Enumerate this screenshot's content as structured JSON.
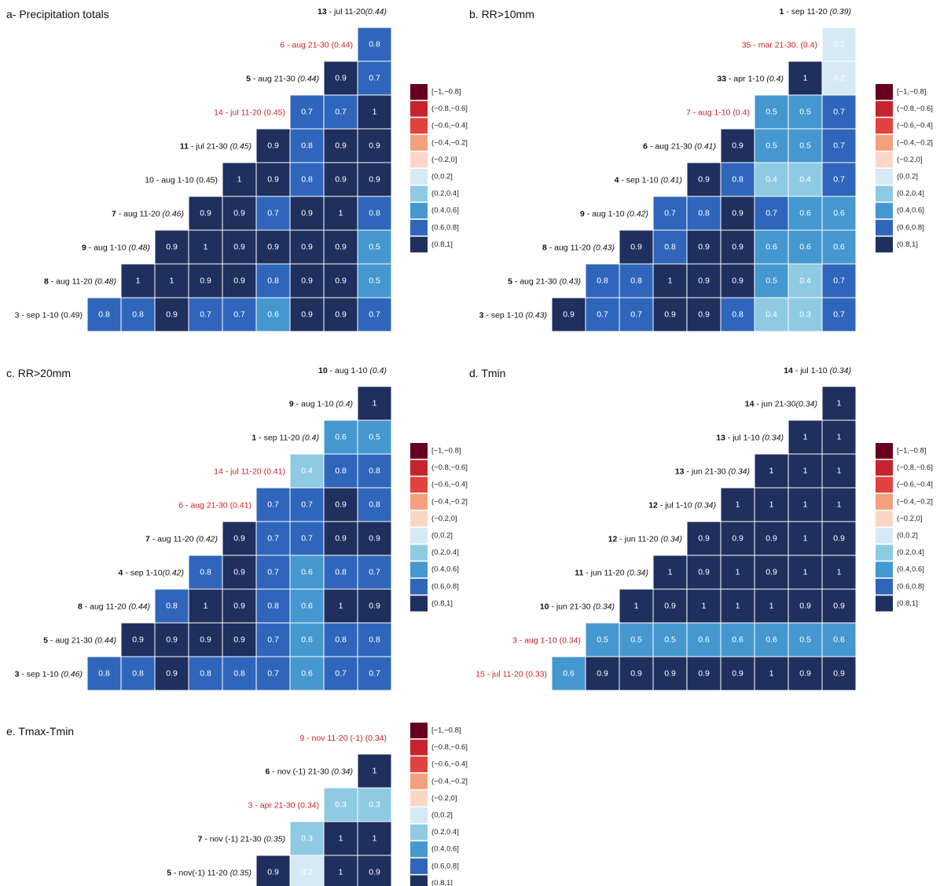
{
  "legend_bins": [
    {
      "label": "[−1,−0.8]",
      "color": "#67001f"
    },
    {
      "label": "(−0.8,−0.6]",
      "color": "#c5242f"
    },
    {
      "label": "(−0.6,−0.4]",
      "color": "#e2433f"
    },
    {
      "label": "(−0.4,−0.2]",
      "color": "#f4a07d"
    },
    {
      "label": "(−0.2,0]",
      "color": "#fcd6c5"
    },
    {
      "label": "(0,0.2]",
      "color": "#d6eaf5"
    },
    {
      "label": "(0.2,0.4]",
      "color": "#8fcae3"
    },
    {
      "label": "(0.4,0.6]",
      "color": "#4598cf"
    },
    {
      "label": "(0.6,0.8]",
      "color": "#2f66bb"
    },
    {
      "label": "(0.8,1]",
      "color": "#1f2f5e"
    }
  ],
  "chart_data": [
    {
      "type": "heatmap",
      "title": "a- Precipitation totals",
      "rows": [
        {
          "num": "13",
          "text": " - jul 11-20",
          "r": "(0.44)",
          "red": false,
          "values": []
        },
        {
          "num": "",
          "text": "6 - aug 21-30 (0.44)",
          "r": "",
          "red": true,
          "values": [
            0.8
          ]
        },
        {
          "num": "5",
          "text": " - aug 21-30 ",
          "r": "(0.44)",
          "red": false,
          "values": [
            0.9,
            0.7
          ]
        },
        {
          "num": "",
          "text": "14 - jul 11-20 (0.45)",
          "r": "",
          "red": true,
          "values": [
            0.7,
            0.7,
            1
          ]
        },
        {
          "num": "11",
          "text": " - jul 21-30 ",
          "r": "(0.45)",
          "red": false,
          "values": [
            0.9,
            0.8,
            0.9,
            0.9
          ]
        },
        {
          "num": "",
          "text": "10 - aug 1-10 (0.45)",
          "r": "",
          "red": false,
          "values": [
            1,
            0.9,
            0.8,
            0.9,
            0.9
          ]
        },
        {
          "num": "7",
          "text": " - aug 11-20 ",
          "r": "(0.46)",
          "red": false,
          "values": [
            0.9,
            0.9,
            0.7,
            0.9,
            1,
            0.8
          ]
        },
        {
          "num": "9",
          "text": " - aug 1-10 ",
          "r": "(0.48)",
          "red": false,
          "values": [
            0.9,
            1,
            0.9,
            0.9,
            0.9,
            0.9,
            0.5
          ]
        },
        {
          "num": "8",
          "text": " - aug 11-20 ",
          "r": "(0.48)",
          "red": false,
          "values": [
            1,
            1,
            0.9,
            0.9,
            0.8,
            0.9,
            0.9,
            0.5
          ]
        },
        {
          "num": "",
          "text": "3 - sep 1-10 (0.49)",
          "r": "",
          "red": false,
          "values": [
            0.8,
            0.8,
            0.9,
            0.7,
            0.7,
            0.6,
            0.9,
            0.9,
            0.7
          ]
        }
      ]
    },
    {
      "type": "heatmap",
      "title": "b. RR>10mm",
      "rows": [
        {
          "num": "1",
          "text": " - sep 11-20 ",
          "r": "(0.39)",
          "red": false,
          "values": []
        },
        {
          "num": "",
          "text": "35 - mar 21-30. (0.4)",
          "r": "",
          "red": true,
          "values": [
            0.2
          ]
        },
        {
          "num": "33",
          "text": " - apr 1-10 ",
          "r": "(0.4)",
          "red": false,
          "values": [
            1,
            0.2
          ]
        },
        {
          "num": "",
          "text": "7 - aug 1-10 (0.4)",
          "r": "",
          "red": true,
          "values": [
            0.5,
            0.5,
            0.7
          ]
        },
        {
          "num": "6",
          "text": " - aug 21-30 ",
          "r": "(0.41)",
          "red": false,
          "values": [
            0.9,
            0.5,
            0.5,
            0.7
          ]
        },
        {
          "num": "4",
          "text": " - sep 1-10 ",
          "r": "(0.41)",
          "red": false,
          "values": [
            0.9,
            0.8,
            0.4,
            0.4,
            0.7
          ]
        },
        {
          "num": "9",
          "text": " - aug  1-10 ",
          "r": "(0.42)",
          "red": false,
          "values": [
            0.7,
            0.8,
            0.9,
            0.7,
            0.6,
            0.6
          ]
        },
        {
          "num": "8",
          "text": " - aug 11-20 ",
          "r": "(0.43)",
          "red": false,
          "values": [
            0.9,
            0.8,
            0.9,
            0.9,
            0.6,
            0.6,
            0.6
          ]
        },
        {
          "num": "5",
          "text": " - aug 21-30 ",
          "r": "(0.43)",
          "red": false,
          "values": [
            0.8,
            0.8,
            1,
            0.9,
            0.9,
            0.5,
            0.4,
            0.7
          ]
        },
        {
          "num": "3",
          "text": " - sep 1-10 ",
          "r": "(0.43)",
          "red": false,
          "values": [
            0.9,
            0.7,
            0.7,
            0.9,
            0.9,
            0.8,
            0.4,
            0.3,
            0.7
          ]
        }
      ]
    },
    {
      "type": "heatmap",
      "title": "c. RR>20mm",
      "rows": [
        {
          "num": "10",
          "text": " - aug 1-10 ",
          "r": "(0.4)",
          "red": false,
          "values": []
        },
        {
          "num": "9",
          "text": " - aug 1-10 ",
          "r": "(0.4)",
          "red": false,
          "values": [
            1
          ]
        },
        {
          "num": "1",
          "text": " - sep 11-20 ",
          "r": "(0.4)",
          "red": false,
          "values": [
            0.6,
            0.5
          ]
        },
        {
          "num": "",
          "text": "14 - jul 11-20 (0.41)",
          "r": "",
          "red": true,
          "values": [
            0.4,
            0.8,
            0.8
          ]
        },
        {
          "num": "",
          "text": "6 - aug 21-30 (0.41)",
          "r": "",
          "red": true,
          "values": [
            0.7,
            0.7,
            0.9,
            0.8
          ]
        },
        {
          "num": "7",
          "text": " - aug 11-20 ",
          "r": "(0.42)",
          "red": false,
          "values": [
            0.9,
            0.7,
            0.7,
            0.9,
            0.9
          ]
        },
        {
          "num": "4",
          "text": " - sep  1-10",
          "r": "(0.42)",
          "red": false,
          "values": [
            0.8,
            0.9,
            0.7,
            0.6,
            0.8,
            0.7
          ]
        },
        {
          "num": "8",
          "text": " - aug 11-20 ",
          "r": "(0.44)",
          "red": false,
          "values": [
            0.8,
            1,
            0.9,
            0.8,
            0.6,
            1,
            0.9
          ]
        },
        {
          "num": "5",
          "text": " - aug 21-30 ",
          "r": "(0.44)",
          "red": false,
          "values": [
            0.9,
            0.9,
            0.9,
            0.9,
            0.7,
            0.6,
            0.8,
            0.8
          ]
        },
        {
          "num": "3",
          "text": " - sep 1-10 ",
          "r": "(0.46)",
          "red": false,
          "values": [
            0.8,
            0.8,
            0.9,
            0.8,
            0.8,
            0.7,
            0.6,
            0.7,
            0.7
          ]
        }
      ]
    },
    {
      "type": "heatmap",
      "title": "d. Tmin",
      "rows": [
        {
          "num": "14",
          "text": " - jul 1-10 ",
          "r": "(0.34)",
          "red": false,
          "values": []
        },
        {
          "num": "14",
          "text": " - jun 21-30",
          "r": "(0.34)",
          "red": false,
          "values": [
            1
          ]
        },
        {
          "num": "13",
          "text": " - jul 1-10  ",
          "r": "(0.34)",
          "red": false,
          "values": [
            1,
            1
          ]
        },
        {
          "num": "13",
          "text": " - jun 21-30 ",
          "r": "(0.34)",
          "red": false,
          "values": [
            1,
            1,
            1
          ]
        },
        {
          "num": "12",
          "text": " - jul 1-10 ",
          "r": "(0.34)",
          "red": false,
          "values": [
            1,
            1,
            1,
            1
          ]
        },
        {
          "num": "12",
          "text": " - jun 11-20 ",
          "r": "(0.34)",
          "red": false,
          "values": [
            0.9,
            0.9,
            0.9,
            1,
            0.9
          ]
        },
        {
          "num": "11",
          "text": " - jun 11-20 ",
          "r": "(0.34)",
          "red": false,
          "values": [
            1,
            0.9,
            1,
            0.9,
            1,
            1
          ]
        },
        {
          "num": "10",
          "text": " - jun 21-30 ",
          "r": "(0.34)",
          "red": false,
          "values": [
            1,
            0.9,
            1,
            1,
            1,
            0.9,
            0.9
          ]
        },
        {
          "num": "",
          "text": "3 - aug 1-10 (0.34)",
          "r": "",
          "red": true,
          "values": [
            0.5,
            0.5,
            0.5,
            0.6,
            0.6,
            0.6,
            0.5,
            0.6
          ]
        },
        {
          "num": "",
          "text": "15 - jul 11-20 (0.33)",
          "r": "",
          "red": true,
          "values": [
            0.6,
            0.9,
            0.9,
            0.9,
            0.9,
            0.9,
            1,
            0.9,
            0.9
          ]
        }
      ]
    },
    {
      "type": "heatmap",
      "title": "e. Tmax-Tmin",
      "rows": [
        {
          "num": "",
          "text": "9 - nov 11-20 (-1) (0.34)",
          "r": "",
          "red": true,
          "values": []
        },
        {
          "num": "6",
          "text": " - nov (-1) 21-30 ",
          "r": "(0.34)",
          "red": false,
          "values": [
            1
          ]
        },
        {
          "num": "",
          "text": "3 - apr 21-30 (0.34)",
          "r": "",
          "red": true,
          "values": [
            0.3,
            0.3
          ]
        },
        {
          "num": "7",
          "text": " - nov (-1) 21-30 ",
          "r": "(0.35)",
          "red": false,
          "values": [
            0.3,
            1,
            1
          ]
        },
        {
          "num": "5",
          "text": " - nov(-1) 11-20 ",
          "r": "(0.35)",
          "red": false,
          "values": [
            0.9,
            0.2,
            1,
            0.9
          ]
        }
      ]
    }
  ]
}
